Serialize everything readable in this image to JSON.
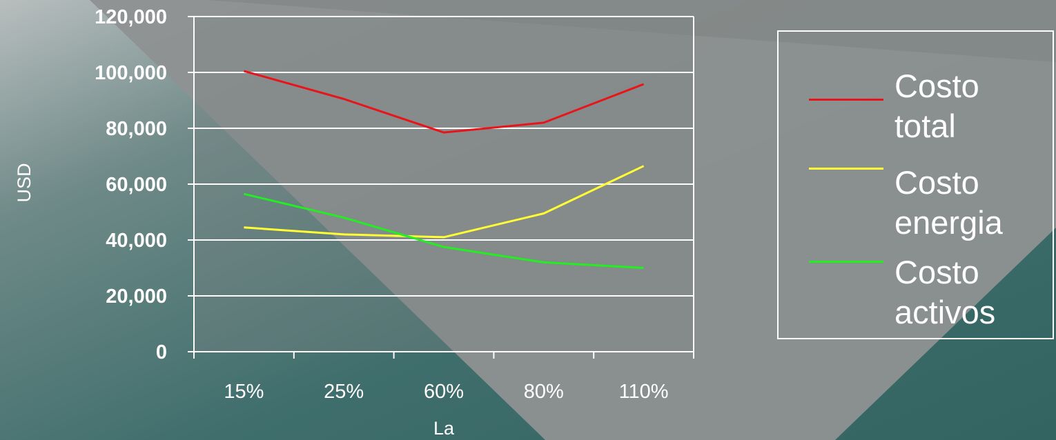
{
  "chart_data": {
    "type": "line",
    "categories": [
      "15%",
      "25%",
      "60%",
      "80%",
      "110%"
    ],
    "series": [
      {
        "name": "Costo total",
        "values": [
          100500,
          90500,
          78500,
          82000,
          95800
        ],
        "color": "#e8141a"
      },
      {
        "name": "Costo energia",
        "values": [
          44500,
          42000,
          41000,
          49500,
          66500
        ],
        "color": "#ffff33"
      },
      {
        "name": "Costo activos",
        "values": [
          56500,
          48000,
          37500,
          32000,
          30000
        ],
        "color": "#22ee22"
      }
    ],
    "yticks": [
      "0",
      "20,000",
      "40,000",
      "60,000",
      "80,000",
      "100,000",
      "120,000"
    ],
    "ylim": [
      0,
      120000
    ],
    "xlabel": "La",
    "ylabel": "USD",
    "grid": true,
    "legend_position": "right"
  },
  "colors": {
    "background": "#3f6e6c",
    "plot_area": "#7a8585",
    "axis": "#ffffff"
  }
}
